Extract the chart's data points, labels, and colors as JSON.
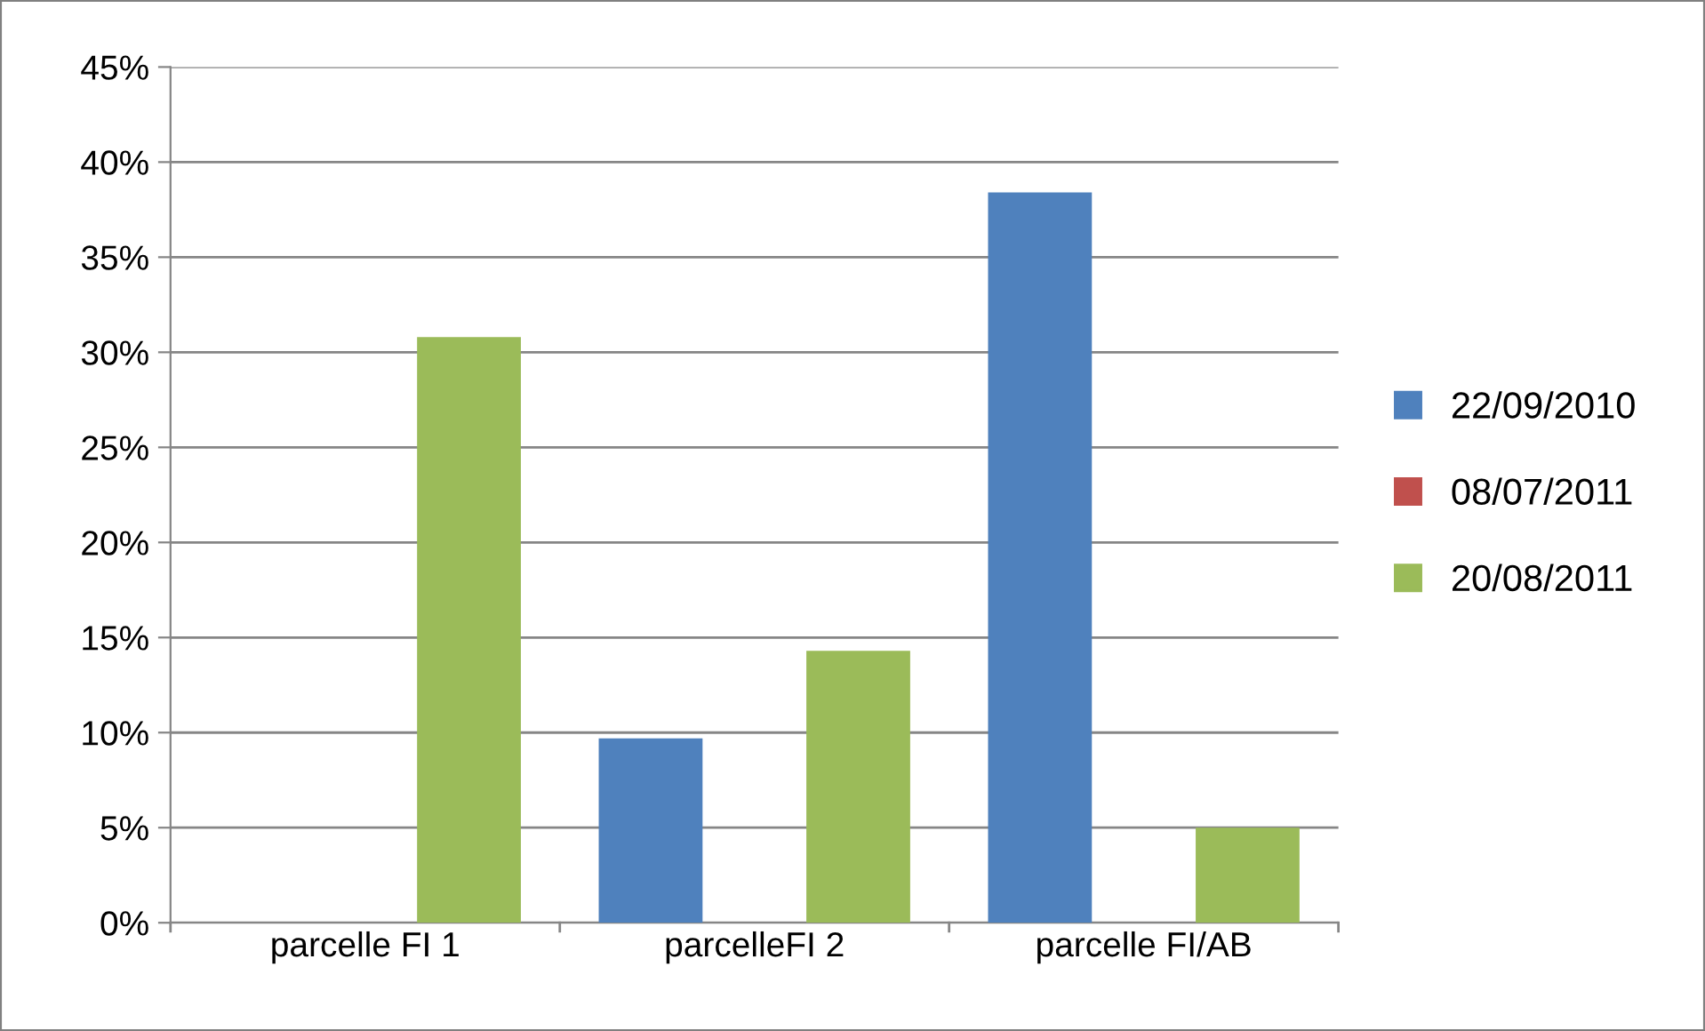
{
  "chart_data": {
    "type": "bar",
    "categories": [
      "parcelle FI 1",
      "parcelleFI 2",
      "parcelle FI/AB"
    ],
    "series": [
      {
        "name": "22/09/2010",
        "color": "#4f81bd",
        "values": [
          0,
          9.7,
          38.4
        ]
      },
      {
        "name": "08/07/2011",
        "color": "#c0504d",
        "values": [
          0,
          0,
          0
        ]
      },
      {
        "name": "20/08/2011",
        "color": "#9bbb59",
        "values": [
          30.8,
          14.3,
          5.0
        ]
      }
    ],
    "ylim": [
      0,
      45
    ],
    "yticks": [
      {
        "value": 0,
        "label": "0%"
      },
      {
        "value": 5,
        "label": "5%"
      },
      {
        "value": 10,
        "label": "10%"
      },
      {
        "value": 15,
        "label": "15%"
      },
      {
        "value": 20,
        "label": "20%"
      },
      {
        "value": 25,
        "label": "25%"
      },
      {
        "value": 30,
        "label": "30%"
      },
      {
        "value": 35,
        "label": "35%"
      },
      {
        "value": 40,
        "label": "40%"
      },
      {
        "value": 45,
        "label": "45%"
      }
    ],
    "grid": "y",
    "legend": "right"
  }
}
